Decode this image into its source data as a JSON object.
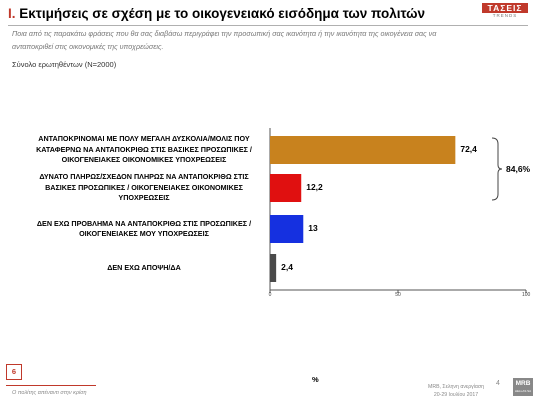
{
  "header": {
    "title_prefix": "Ι.",
    "title_text": " Εκτιμήσεις σε σχέση με το οικογενειακό εισόδημα των πολιτών",
    "question": "Ποια από τις παρακάτω φράσεις που θα σας διαβάσω περιγράφει την προσωπική σας ικανότητα ή την ικανότητα της οικογένεια σας να ανταποκριθεί στις οικονομικές της υποχρεώσεις.",
    "base": "Σύνολο ερωτηθέντων (Ν=2000)",
    "logo_main": "ΤΑΣΕΙΣ",
    "logo_sub": "TRENDS"
  },
  "chart_data": {
    "type": "bar",
    "orientation": "horizontal",
    "categories": [
      "ΑΝΤΑΠΟΚΡΙΝΟΜΑΙ ΜΕ ΠΟΛΥ ΜΕΓΑΛΗ ΔΥΣΚΟΛΙΑ/ΜΟΛΙΣ ΠΟΥ ΚΑΤΑΦΕΡΝΩ ΝΑ ΑΝΤΑΠΟΚΡΙΘΩ ΣΤΙΣ ΒΑΣΙΚΕΣ ΠΡΟΣΩΠΙΚΕΣ / ΟΙΚΟΓΕΝΕΙΑΚΕΣ ΟΙΚΟΝΟΜΙΚΕΣ ΥΠΟΧΡΕΩΣΕΙΣ",
      "ΔΥΝΑΤΟ ΠΛΗΡΩΣ/ΣΧΕΔΟΝ ΠΛΗΡΩΣ ΝΑ ΑΝΤΑΠΟΚΡΙΘΩ ΣΤΙΣ ΒΑΣΙΚΕΣ ΠΡΟΣΩΠΙΚΕΣ / ΟΙΚΟΓΕΝΕΙΑΚΕΣ ΟΙΚΟΝΟΜΙΚΕΣ ΥΠΟΧΡΕΩΣΕΙΣ",
      "ΔΕΝ ΕΧΩ ΠΡΟΒΛΗΜΑ ΝΑ ΑΝΤΑΠΟΚΡΙΘΩ ΣΤΙΣ ΠΡΟΣΩΠΙΚΕΣ / ΟΙΚΟΓΕΝΕΙΑΚΕΣ ΜΟΥ ΥΠΟΧΡΕΩΣΕΙΣ",
      "ΔΕΝ ΕΧΩ ΑΠΟΨΗ/ΔΑ"
    ],
    "category_lines": [
      [
        "ΑΝΤΑΠΟΚΡΙΝΟΜΑΙ ΜΕ ΠΟΛΥ ΜΕΓΑΛΗ ΔΥΣΚΟΛΙΑ/ΜΟΛΙΣ ΠΟΥ",
        "ΚΑΤΑΦΕΡΝΩ ΝΑ ΑΝΤΑΠΟΚΡΙΘΩ ΣΤΙΣ ΒΑΣΙΚΕΣ ΠΡΟΣΩΠΙΚΕΣ /",
        "ΟΙΚΟΓΕΝΕΙΑΚΕΣ ΟΙΚΟΝΟΜΙΚΕΣ ΥΠΟΧΡΕΩΣΕΙΣ"
      ],
      [
        "ΔΥΝΑΤΟ ΠΛΗΡΩΣ/ΣΧΕΔΟΝ ΠΛΗΡΩΣ ΝΑ ΑΝΤΑΠΟΚΡΙΘΩ ΣΤΙΣ",
        "ΒΑΣΙΚΕΣ ΠΡΟΣΩΠΙΚΕΣ / ΟΙΚΟΓΕΝΕΙΑΚΕΣ ΟΙΚΟΝΟΜΙΚΕΣ",
        "ΥΠΟΧΡΕΩΣΕΙΣ"
      ],
      [
        "ΔΕΝ ΕΧΩ ΠΡΟΒΛΗΜΑ ΝΑ ΑΝΤΑΠΟΚΡΙΘΩ ΣΤΙΣ ΠΡΟΣΩΠΙΚΕΣ /",
        "ΟΙΚΟΓΕΝΕΙΑΚΕΣ ΜΟΥ ΥΠΟΧΡΕΩΣΕΙΣ"
      ],
      [
        "ΔΕΝ ΕΧΩ ΑΠΟΨΗ/ΔΑ"
      ]
    ],
    "values": [
      72.4,
      12.2,
      13,
      2.4
    ],
    "value_labels": [
      "72,4",
      "12,2",
      "13",
      "2,4"
    ],
    "colors": [
      "#c8821e",
      "#e01010",
      "#1530e0",
      "#4a4a4a"
    ],
    "xlim": [
      0,
      100
    ],
    "xticks": [
      0,
      50,
      100
    ],
    "xtick_labels": [
      "0",
      "50",
      "100"
    ],
    "xlabel": "%",
    "bracket": {
      "label": "84,6%",
      "spans_categories": [
        0,
        1
      ]
    },
    "grid": false
  },
  "footer": {
    "page_badge": "6",
    "note": "Ο πολίτης απέναντι στην κρίση",
    "source_line1": "MRB, Σεληνη ανεργίαση",
    "source_line2": "20-29 Ιουλίου 2017",
    "page_number": "4",
    "mrb_main": "MRB",
    "mrb_sub": "HELLAS SA"
  }
}
